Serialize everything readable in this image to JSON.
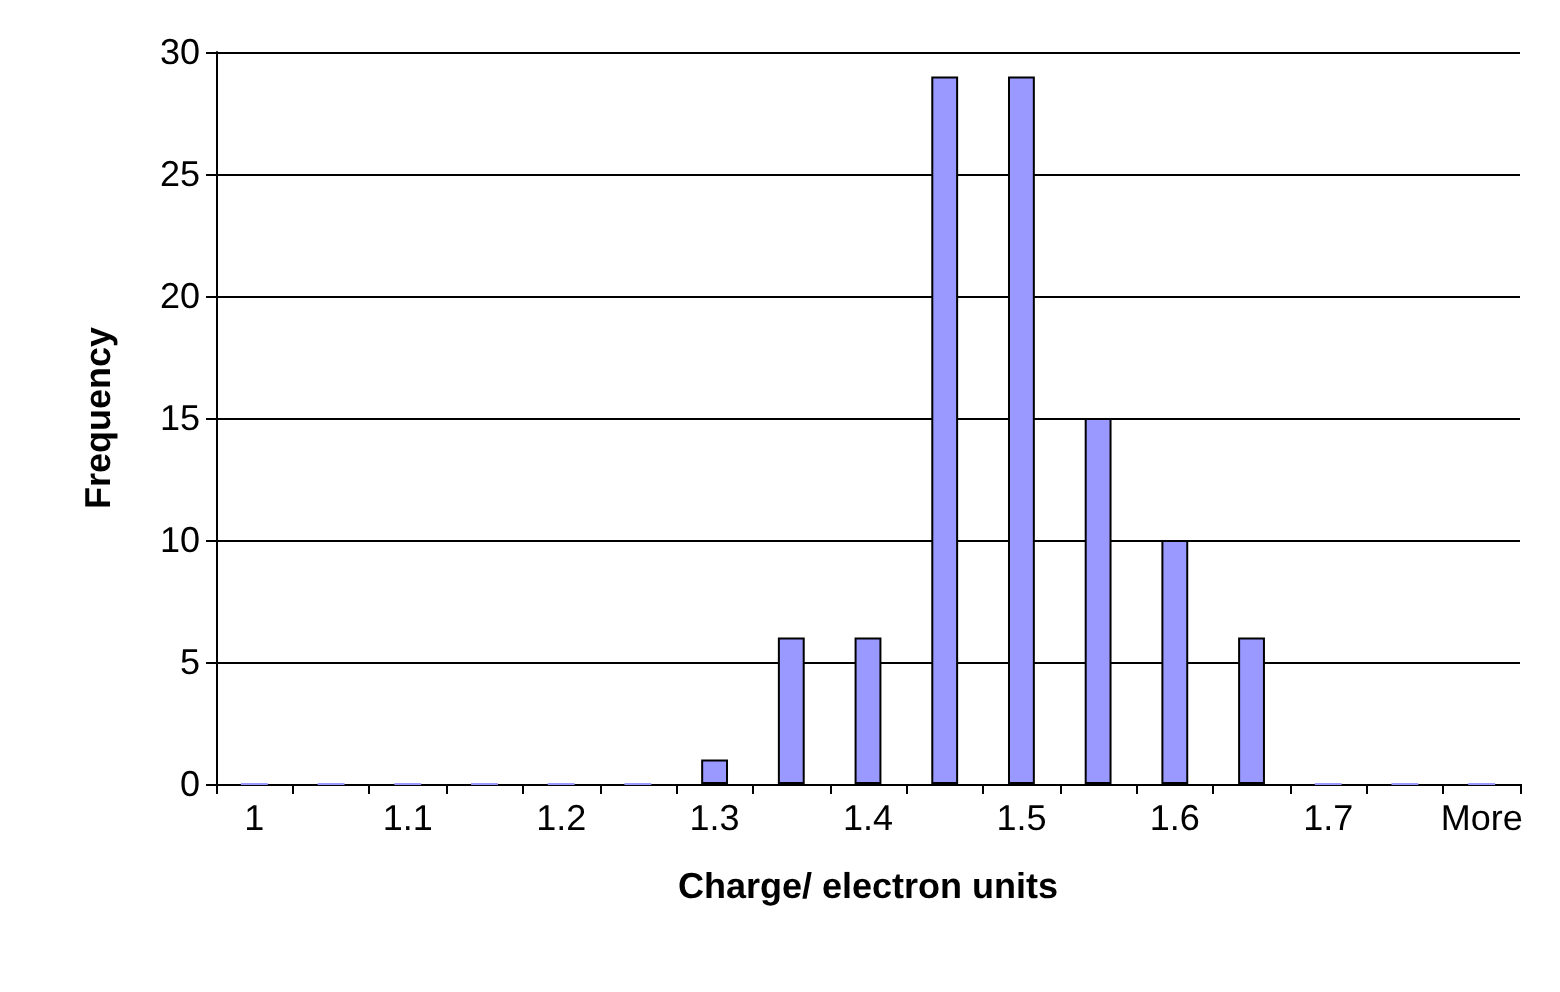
{
  "chart_data": {
    "type": "bar",
    "xlabel": "Charge/ electron units",
    "ylabel": "Frequency",
    "categories": [
      "1",
      null,
      "1.1",
      null,
      "1.2",
      null,
      "1.3",
      null,
      "1.4",
      null,
      "1.5",
      null,
      "1.6",
      null,
      "1.7",
      null,
      "More"
    ],
    "values": [
      0,
      0,
      0,
      0,
      0,
      0,
      1,
      6,
      6,
      29,
      29,
      15,
      10,
      6,
      0,
      0,
      0
    ],
    "color": "#9999ff",
    "ylim": [
      0,
      30
    ],
    "yticks": [
      0,
      5,
      10,
      15,
      20,
      25,
      30
    ],
    "grid": "y"
  }
}
